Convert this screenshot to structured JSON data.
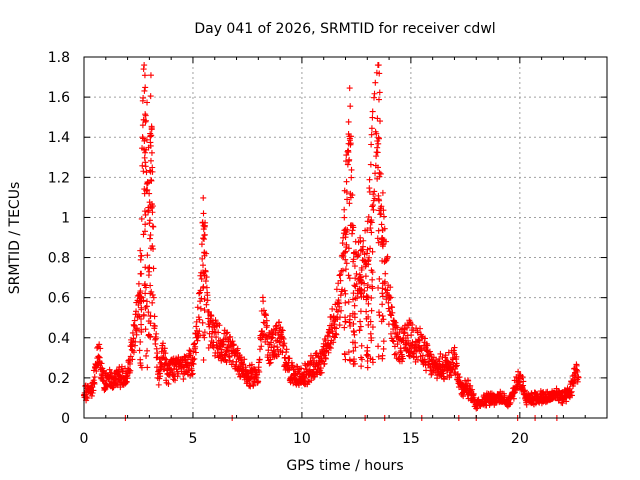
{
  "chart_data": {
    "type": "scatter",
    "title": "Day 041 of 2026, SRMTID for receiver cdwl",
    "xlabel": "GPS time / hours",
    "ylabel": "SRMTID / TECUs",
    "xlim": [
      0,
      24
    ],
    "ylim": [
      0,
      1.8
    ],
    "grid": true,
    "marker": "+",
    "color": "#ff0000",
    "xticks": [
      0,
      5,
      10,
      15,
      20
    ],
    "xtick_labels": [
      "0",
      "5",
      "10",
      "15",
      "20"
    ],
    "yticks": [
      0,
      0.2,
      0.4,
      0.6,
      0.8,
      1.0,
      1.2,
      1.4,
      1.6,
      1.8
    ],
    "ytick_labels": [
      "0",
      "0.2",
      "0.4",
      "0.6",
      "0.8",
      "1",
      "1.2",
      "1.4",
      "1.6",
      "1.8"
    ],
    "series": [
      {
        "name": "SRMTID",
        "profile": [
          [
            0.0,
            0.12
          ],
          [
            0.4,
            0.15
          ],
          [
            0.7,
            0.35
          ],
          [
            0.8,
            0.22
          ],
          [
            1.0,
            0.18
          ],
          [
            1.5,
            0.2
          ],
          [
            1.8,
            0.2
          ],
          [
            2.0,
            0.22
          ],
          [
            2.2,
            0.35
          ],
          [
            2.4,
            0.5
          ],
          [
            2.6,
            0.7
          ],
          [
            2.75,
            1.76
          ],
          [
            2.85,
            1.4
          ],
          [
            3.0,
            1.0
          ],
          [
            3.1,
            1.55
          ],
          [
            3.2,
            0.6
          ],
          [
            3.4,
            0.2
          ],
          [
            3.6,
            0.35
          ],
          [
            3.8,
            0.22
          ],
          [
            4.0,
            0.25
          ],
          [
            4.5,
            0.25
          ],
          [
            5.0,
            0.28
          ],
          [
            5.3,
            0.55
          ],
          [
            5.5,
            0.97
          ],
          [
            5.7,
            0.45
          ],
          [
            6.0,
            0.4
          ],
          [
            6.5,
            0.35
          ],
          [
            7.0,
            0.3
          ],
          [
            7.3,
            0.25
          ],
          [
            7.5,
            0.2
          ],
          [
            8.0,
            0.22
          ],
          [
            8.2,
            0.5
          ],
          [
            8.5,
            0.35
          ],
          [
            9.0,
            0.4
          ],
          [
            9.5,
            0.22
          ],
          [
            10.0,
            0.2
          ],
          [
            10.5,
            0.25
          ],
          [
            11.0,
            0.3
          ],
          [
            11.5,
            0.5
          ],
          [
            11.8,
            0.6
          ],
          [
            12.0,
            1.0
          ],
          [
            12.2,
            1.43
          ],
          [
            12.4,
            0.7
          ],
          [
            12.7,
            0.75
          ],
          [
            13.0,
            0.8
          ],
          [
            13.2,
            1.2
          ],
          [
            13.5,
            1.56
          ],
          [
            13.7,
            0.95
          ],
          [
            14.0,
            0.6
          ],
          [
            14.2,
            0.4
          ],
          [
            14.5,
            0.35
          ],
          [
            15.0,
            0.4
          ],
          [
            15.5,
            0.35
          ],
          [
            16.0,
            0.25
          ],
          [
            16.5,
            0.25
          ],
          [
            17.0,
            0.3
          ],
          [
            17.3,
            0.15
          ],
          [
            17.6,
            0.15
          ],
          [
            18.0,
            0.07
          ],
          [
            18.5,
            0.1
          ],
          [
            19.0,
            0.1
          ],
          [
            19.5,
            0.08
          ],
          [
            20.0,
            0.2
          ],
          [
            20.3,
            0.1
          ],
          [
            20.8,
            0.1
          ],
          [
            21.3,
            0.1
          ],
          [
            21.7,
            0.12
          ],
          [
            22.0,
            0.1
          ],
          [
            22.3,
            0.12
          ],
          [
            22.6,
            0.25
          ],
          [
            22.7,
            0.18
          ]
        ]
      }
    ],
    "zero_markers_x": [
      1.9,
      6.8,
      12.9,
      13.8,
      15.5,
      17.2,
      18.0,
      19.9,
      20.7,
      21.7
    ]
  }
}
